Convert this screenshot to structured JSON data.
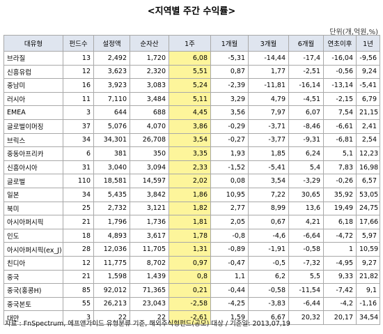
{
  "title": "<지역별 주간 수익률>",
  "unit": "단위(개,억원,%)",
  "table": {
    "columns": [
      "대유형",
      "펀드수",
      "설정액",
      "순자산",
      "1주",
      "1개월",
      "3개월",
      "6개월",
      "연초이후",
      "1년"
    ],
    "rows": [
      [
        "브라질",
        "13",
        "2,492",
        "1,720",
        "6,08",
        "-5,31",
        "-14,44",
        "-17,4",
        "-16,04",
        "-9,56"
      ],
      [
        "신흥유럽",
        "12",
        "3,623",
        "2,320",
        "5,51",
        "0,87",
        "1,77",
        "-2,51",
        "-0,56",
        "9,24"
      ],
      [
        "중남미",
        "16",
        "3,923",
        "3,083",
        "5,24",
        "-2,39",
        "-11,81",
        "-16,14",
        "-13,14",
        "-5,41"
      ],
      [
        "러시아",
        "11",
        "7,110",
        "3,484",
        "5,11",
        "3,29",
        "4,79",
        "-4,51",
        "-2,15",
        "6,79"
      ],
      [
        "EMEA",
        "3",
        "644",
        "688",
        "4,45",
        "3,56",
        "7,97",
        "6,07",
        "7,54",
        "21,15"
      ],
      [
        "글로벌이머징",
        "37",
        "5,076",
        "4,070",
        "3,86",
        "-0,29",
        "-3,71",
        "-8,46",
        "-6,61",
        "2,41"
      ],
      [
        "브릭스",
        "34",
        "34,301",
        "26,708",
        "3,54",
        "-0,27",
        "-3,77",
        "-9,31",
        "-6,81",
        "2,54"
      ],
      [
        "중동아프리카",
        "6",
        "381",
        "350",
        "3,35",
        "1,93",
        "1,85",
        "6,24",
        "5,1",
        "12,23"
      ],
      [
        "신흥아시아",
        "31",
        "3,040",
        "3,094",
        "2,33",
        "-1,52",
        "-5,41",
        "5,4",
        "7,83",
        "16,98"
      ],
      [
        "글로벌",
        "110",
        "18,581",
        "14,597",
        "2,02",
        "0,08",
        "3,54",
        "-3,29",
        "-0,26",
        "6,57"
      ],
      [
        "일본",
        "34",
        "5,435",
        "3,842",
        "1,86",
        "10,95",
        "7,22",
        "30,65",
        "35,92",
        "53,05"
      ],
      [
        "북미",
        "25",
        "2,732",
        "3,121",
        "1,82",
        "2,77",
        "8,99",
        "13,6",
        "19,49",
        "24,75"
      ],
      [
        "아시아퍼시픽",
        "21",
        "1,796",
        "1,736",
        "1,81",
        "2,05",
        "0,67",
        "4,21",
        "6,18",
        "17,66"
      ],
      [
        "인도",
        "18",
        "4,893",
        "3,617",
        "1,78",
        "-0,8",
        "-4,6",
        "-6,64",
        "-4,72",
        "5,97"
      ],
      [
        "아시아퍼시픽(ex_J)",
        "28",
        "12,036",
        "11,705",
        "1,31",
        "-0,89",
        "-1,91",
        "-0,58",
        "1",
        "10,59"
      ],
      [
        "친디아",
        "12",
        "11,775",
        "8,702",
        "0,97",
        "-0,47",
        "-0,5",
        "-7,32",
        "-4,95",
        "9,27"
      ],
      [
        "중국",
        "21",
        "1,598",
        "1,439",
        "0,8",
        "1,1",
        "6,2",
        "5,5",
        "9,33",
        "21,82"
      ],
      [
        "중국(홍콩H)",
        "85",
        "92,012",
        "71,365",
        "0,21",
        "-0,44",
        "-0,58",
        "-11,54",
        "-7,42",
        "9,1"
      ],
      [
        "중국본토",
        "55",
        "26,213",
        "23,043",
        "-2,58",
        "-4,25",
        "-3,83",
        "-6,44",
        "-4,2",
        "-1,16"
      ],
      [
        "대만",
        "3",
        "22",
        "22",
        "-2,61",
        "1,59",
        "6,67",
        "20,32",
        "20,17",
        "34,54"
      ]
    ]
  },
  "note": "자료 : FnSpectrum, 에프앤가이드 유형분류 기준, 해외주식형펀드(공모) 대상 / 기준일: 2013,07,19"
}
